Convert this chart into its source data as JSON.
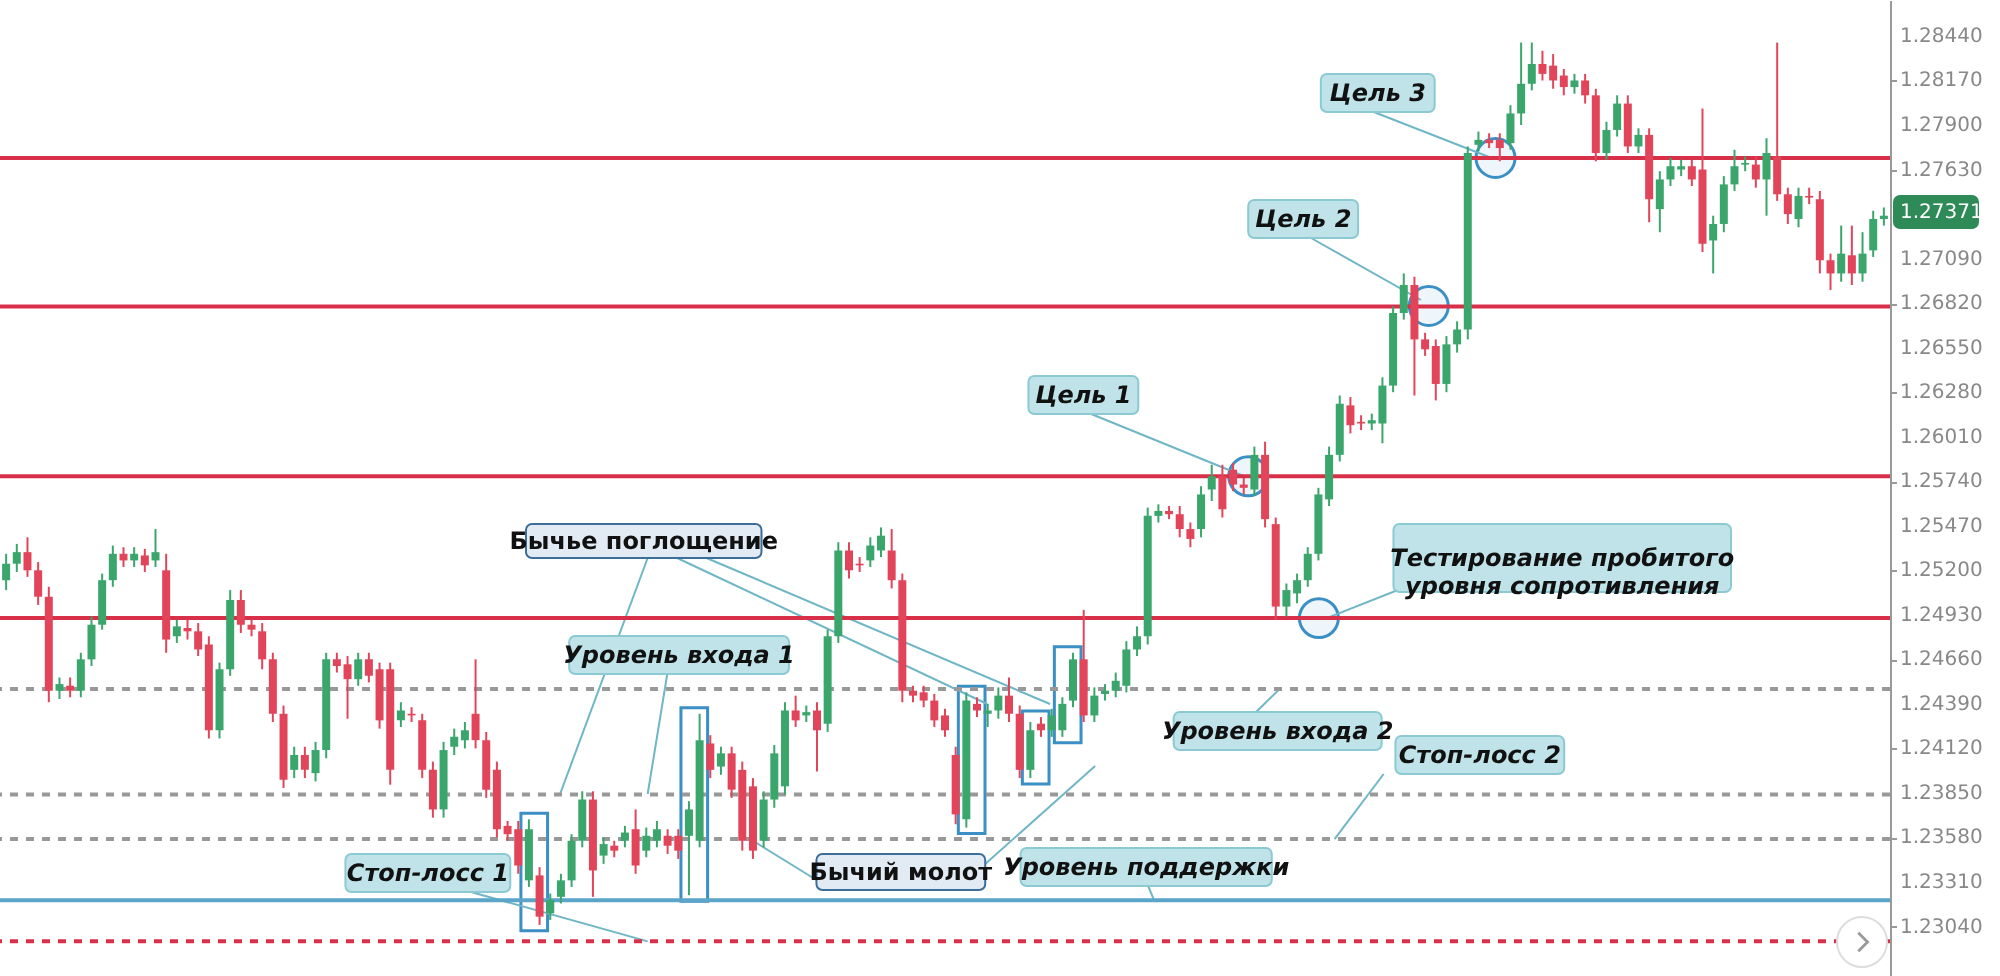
{
  "chart_data": {
    "type": "candlestick",
    "categories": [
      null,
      null,
      null,
      null,
      null,
      null,
      null,
      null,
      null,
      null,
      null,
      null,
      null,
      null,
      null,
      null,
      null,
      null,
      null,
      null,
      null,
      null,
      null,
      null,
      null,
      null,
      null,
      null,
      null,
      null,
      null,
      null,
      null,
      null,
      null,
      null,
      null,
      null,
      null,
      null,
      null,
      null,
      null,
      null,
      null,
      null,
      null,
      null,
      null,
      null,
      null,
      null,
      null,
      null,
      null,
      null,
      null,
      null,
      null,
      null,
      null,
      null,
      null,
      null,
      null,
      null,
      null,
      null,
      null,
      null,
      null,
      null,
      null,
      null,
      null,
      null,
      null,
      null,
      null,
      null,
      null,
      null,
      null,
      null,
      null,
      null,
      null,
      null,
      null,
      null,
      null,
      null,
      null,
      null,
      null,
      null,
      null,
      null,
      null,
      null,
      null,
      null,
      null,
      null,
      null,
      null,
      null,
      null,
      null,
      null,
      null,
      null,
      null,
      null,
      null,
      null,
      null,
      null,
      null,
      null,
      null,
      null,
      null,
      null,
      null,
      null,
      null,
      null,
      null,
      null,
      null,
      null,
      null,
      null,
      null,
      null,
      null,
      null,
      null,
      null,
      null,
      null,
      null,
      null,
      null,
      null,
      null,
      null,
      null,
      null,
      null,
      null,
      null,
      null,
      null,
      null,
      null,
      null,
      null,
      null,
      null,
      null,
      null,
      null,
      null,
      null,
      null,
      null,
      null,
      null,
      null,
      null,
      null,
      null,
      null,
      null,
      null
    ],
    "ohlc": [
      [
        1.2514,
        1.253,
        1.2508,
        1.2524
      ],
      [
        1.2524,
        1.2536,
        1.2519,
        1.2531
      ],
      [
        1.2531,
        1.254,
        1.2516,
        1.252
      ],
      [
        1.252,
        1.2525,
        1.2499,
        1.2504
      ],
      [
        1.2504,
        1.251,
        1.244,
        1.2447
      ],
      [
        1.2447,
        1.2455,
        1.2442,
        1.2451
      ],
      [
        1.245,
        1.2455,
        1.2443,
        1.2447
      ],
      [
        1.2447,
        1.247,
        1.2443,
        1.2466
      ],
      [
        1.2466,
        1.2492,
        1.2462,
        1.2487
      ],
      [
        1.2487,
        1.2518,
        1.2484,
        1.2514
      ],
      [
        1.2514,
        1.2535,
        1.251,
        1.253
      ],
      [
        1.253,
        1.2534,
        1.2522,
        1.2526
      ],
      [
        1.2526,
        1.2534,
        1.2522,
        1.253
      ],
      [
        1.2529,
        1.2533,
        1.2519,
        1.2523
      ],
      [
        1.2526,
        1.2545,
        1.2522,
        1.2531
      ],
      [
        1.252,
        1.253,
        1.247,
        1.2478
      ],
      [
        1.248,
        1.249,
        1.2476,
        1.2486
      ],
      [
        1.2485,
        1.249,
        1.2478,
        1.2483
      ],
      [
        1.2483,
        1.2488,
        1.2468,
        1.2472
      ],
      [
        1.2475,
        1.248,
        1.2418,
        1.2423
      ],
      [
        1.2423,
        1.2464,
        1.2418,
        1.246
      ],
      [
        1.246,
        1.2508,
        1.2456,
        1.2502
      ],
      [
        1.2502,
        1.2508,
        1.2482,
        1.2487
      ],
      [
        1.2487,
        1.249,
        1.248,
        1.2484
      ],
      [
        1.2483,
        1.2488,
        1.246,
        1.2466
      ],
      [
        1.2466,
        1.247,
        1.2428,
        1.2433
      ],
      [
        1.2433,
        1.2438,
        1.2388,
        1.2393
      ],
      [
        1.2399,
        1.2413,
        1.2394,
        1.2408
      ],
      [
        1.2408,
        1.2413,
        1.2394,
        1.2399
      ],
      [
        1.2397,
        1.2416,
        1.2392,
        1.2411
      ],
      [
        1.2411,
        1.247,
        1.2406,
        1.2466
      ],
      [
        1.2466,
        1.247,
        1.2458,
        1.2462
      ],
      [
        1.2463,
        1.2468,
        1.243,
        1.2454
      ],
      [
        1.2454,
        1.247,
        1.245,
        1.2466
      ],
      [
        1.2466,
        1.247,
        1.2452,
        1.2456
      ],
      [
        1.246,
        1.2464,
        1.2424,
        1.2429
      ],
      [
        1.246,
        1.2464,
        1.239,
        1.2399
      ],
      [
        1.2429,
        1.244,
        1.2425,
        1.2435
      ],
      [
        1.2433,
        1.2437,
        1.2428,
        1.2432
      ],
      [
        1.2429,
        1.2433,
        1.2394,
        1.2399
      ],
      [
        1.2399,
        1.2404,
        1.237,
        1.2375
      ],
      [
        1.2375,
        1.2416,
        1.237,
        1.2411
      ],
      [
        1.2413,
        1.2424,
        1.2408,
        1.2419
      ],
      [
        1.2417,
        1.2428,
        1.2412,
        1.2423
      ],
      [
        1.2433,
        1.2466,
        1.2412,
        1.2417
      ],
      [
        1.2417,
        1.2422,
        1.2382,
        1.2387
      ],
      [
        1.2399,
        1.2404,
        1.2358,
        1.2363
      ],
      [
        1.2365,
        1.2368,
        1.2356,
        1.236
      ],
      [
        1.2363,
        1.2368,
        1.2336,
        1.2341
      ],
      [
        1.2332,
        1.2369,
        1.2328,
        1.2363
      ],
      [
        1.2335,
        1.234,
        1.2305,
        1.231
      ],
      [
        1.2312,
        1.2324,
        1.2308,
        1.232
      ],
      [
        1.2322,
        1.2336,
        1.2318,
        1.2332
      ],
      [
        1.2332,
        1.236,
        1.2328,
        1.2356
      ],
      [
        1.2356,
        1.2386,
        1.2352,
        1.2381
      ],
      [
        1.2381,
        1.2386,
        1.2322,
        1.2338
      ],
      [
        1.2347,
        1.2358,
        1.2342,
        1.2354
      ],
      [
        1.2353,
        1.2356,
        1.2346,
        1.235
      ],
      [
        1.2356,
        1.2365,
        1.2352,
        1.2361
      ],
      [
        1.2363,
        1.2375,
        1.2336,
        1.2341
      ],
      [
        1.235,
        1.2364,
        1.2346,
        1.2359
      ],
      [
        1.2356,
        1.2368,
        1.2352,
        1.2363
      ],
      [
        1.2359,
        1.2363,
        1.2348,
        1.2353
      ],
      [
        1.2359,
        1.2363,
        1.2345,
        1.235
      ],
      [
        1.2359,
        1.238,
        1.2323,
        1.2375
      ],
      [
        1.2356,
        1.2433,
        1.2352,
        1.2417
      ],
      [
        1.2415,
        1.242,
        1.2394,
        1.2399
      ],
      [
        1.2401,
        1.2413,
        1.2396,
        1.2409
      ],
      [
        1.2409,
        1.2413,
        1.2382,
        1.2387
      ],
      [
        1.2399,
        1.2404,
        1.235,
        1.2356
      ],
      [
        1.2389,
        1.2394,
        1.2345,
        1.235
      ],
      [
        1.2356,
        1.2386,
        1.2352,
        1.2381
      ],
      [
        1.2381,
        1.2414,
        1.2376,
        1.2409
      ],
      [
        1.2389,
        1.244,
        1.2384,
        1.2435
      ],
      [
        1.2435,
        1.2444,
        1.2425,
        1.2429
      ],
      [
        1.2432,
        1.2438,
        1.2428,
        1.2434
      ],
      [
        1.2435,
        1.244,
        1.2398,
        1.2423
      ],
      [
        1.2427,
        1.2484,
        1.2422,
        1.248
      ],
      [
        1.248,
        1.2537,
        1.2476,
        1.2532
      ],
      [
        1.2532,
        1.2537,
        1.2515,
        1.252
      ],
      [
        1.2524,
        1.2528,
        1.2519,
        1.2523
      ],
      [
        1.2526,
        1.254,
        1.2522,
        1.2535
      ],
      [
        1.2532,
        1.2546,
        1.2528,
        1.2541
      ],
      [
        1.2532,
        1.2545,
        1.2509,
        1.2514
      ],
      [
        1.2514,
        1.2518,
        1.244,
        1.2447
      ],
      [
        1.2447,
        1.245,
        1.244,
        1.2444
      ],
      [
        1.2446,
        1.245,
        1.2437,
        1.2441
      ],
      [
        1.2441,
        1.2445,
        1.2425,
        1.2429
      ],
      [
        1.2432,
        1.2436,
        1.2419,
        1.2423
      ],
      [
        1.2408,
        1.2413,
        1.2366,
        1.2372
      ],
      [
        1.2369,
        1.2446,
        1.2364,
        1.2441
      ],
      [
        1.2439,
        1.2443,
        1.2431,
        1.2435
      ],
      [
        1.2433,
        1.2439,
        1.2425,
        1.2435
      ],
      [
        1.2435,
        1.2449,
        1.243,
        1.2444
      ],
      [
        1.2444,
        1.2455,
        1.2428,
        1.2433
      ],
      [
        1.2433,
        1.2438,
        1.2394,
        1.2399
      ],
      [
        1.2399,
        1.2428,
        1.2394,
        1.2423
      ],
      [
        1.2427,
        1.2431,
        1.2419,
        1.2423
      ],
      [
        1.2423,
        1.2436,
        1.2419,
        1.2432
      ],
      [
        1.2423,
        1.2443,
        1.2419,
        1.2439
      ],
      [
        1.2441,
        1.247,
        1.2437,
        1.2466
      ],
      [
        1.2466,
        1.2496,
        1.2428,
        1.2432
      ],
      [
        1.2432,
        1.2449,
        1.2428,
        1.2444
      ],
      [
        1.2445,
        1.2451,
        1.2441,
        1.2447
      ],
      [
        1.2447,
        1.2458,
        1.2443,
        1.2453
      ],
      [
        1.245,
        1.2477,
        1.2446,
        1.2472
      ],
      [
        1.2472,
        1.2486,
        1.2468,
        1.248
      ],
      [
        1.248,
        1.2558,
        1.2475,
        1.2553
      ],
      [
        1.2553,
        1.256,
        1.2549,
        1.2556
      ],
      [
        1.2556,
        1.2559,
        1.2551,
        1.2554
      ],
      [
        1.2554,
        1.2559,
        1.254,
        1.2545
      ],
      [
        1.2545,
        1.2549,
        1.2534,
        1.2539
      ],
      [
        1.2545,
        1.2571,
        1.254,
        1.2566
      ],
      [
        1.2569,
        1.2584,
        1.2562,
        1.2577
      ],
      [
        1.2577,
        1.2584,
        1.2552,
        1.2557
      ],
      [
        1.2581,
        1.2585,
        1.2568,
        1.2572
      ],
      [
        1.2572,
        1.2576,
        1.2566,
        1.257
      ],
      [
        1.2569,
        1.2595,
        1.2565,
        1.259
      ],
      [
        1.259,
        1.2598,
        1.2546,
        1.2551
      ],
      [
        1.2548,
        1.2552,
        1.249,
        1.2498
      ],
      [
        1.2498,
        1.2512,
        1.2492,
        1.2508
      ],
      [
        1.2506,
        1.2518,
        1.25,
        1.2514
      ],
      [
        1.2514,
        1.2534,
        1.251,
        1.253
      ],
      [
        1.253,
        1.257,
        1.2526,
        1.2566
      ],
      [
        1.2563,
        1.2595,
        1.2559,
        1.259
      ],
      [
        1.259,
        1.2626,
        1.2586,
        1.2621
      ],
      [
        1.262,
        1.2625,
        1.2603,
        1.2608
      ],
      [
        1.261,
        1.2614,
        1.2605,
        1.2609
      ],
      [
        1.2609,
        1.2615,
        1.2605,
        1.2611
      ],
      [
        1.2609,
        1.2637,
        1.2597,
        1.2632
      ],
      [
        1.2632,
        1.268,
        1.2628,
        1.2676
      ],
      [
        1.2676,
        1.27,
        1.2672,
        1.2693
      ],
      [
        1.2693,
        1.2698,
        1.2626,
        1.266
      ],
      [
        1.266,
        1.2664,
        1.265,
        1.2654
      ],
      [
        1.2656,
        1.266,
        1.2623,
        1.2633
      ],
      [
        1.2633,
        1.2662,
        1.2628,
        1.2657
      ],
      [
        1.2657,
        1.2671,
        1.2652,
        1.2666
      ],
      [
        1.2666,
        1.2777,
        1.266,
        1.2773
      ],
      [
        1.2778,
        1.2786,
        1.2774,
        1.2781
      ],
      [
        1.2781,
        1.2785,
        1.2776,
        1.2779
      ],
      [
        1.2781,
        1.2785,
        1.2768,
        1.2776
      ],
      [
        1.2779,
        1.2802,
        1.2775,
        1.2797
      ],
      [
        1.2797,
        1.284,
        1.279,
        1.2815
      ],
      [
        1.2815,
        1.284,
        1.2811,
        1.2827
      ],
      [
        1.2827,
        1.2835,
        1.2817,
        1.2821
      ],
      [
        1.2826,
        1.2833,
        1.2812,
        1.2817
      ],
      [
        1.282,
        1.2824,
        1.2808,
        1.2813
      ],
      [
        1.2813,
        1.2821,
        1.2809,
        1.2817
      ],
      [
        1.2817,
        1.2821,
        1.2803,
        1.2808
      ],
      [
        1.2808,
        1.2812,
        1.2768,
        1.2773
      ],
      [
        1.2773,
        1.2792,
        1.2769,
        1.2787
      ],
      [
        1.2787,
        1.2808,
        1.2783,
        1.2803
      ],
      [
        1.2803,
        1.2808,
        1.2773,
        1.2777
      ],
      [
        1.2777,
        1.2788,
        1.2773,
        1.2784
      ],
      [
        1.2784,
        1.2788,
        1.2731,
        1.2745
      ],
      [
        1.2739,
        1.2762,
        1.2725,
        1.2757
      ],
      [
        1.2757,
        1.277,
        1.2753,
        1.2765
      ],
      [
        1.2763,
        1.2769,
        1.2759,
        1.2765
      ],
      [
        1.2765,
        1.2769,
        1.2753,
        1.2757
      ],
      [
        1.2763,
        1.28,
        1.2713,
        1.2718
      ],
      [
        1.272,
        1.2735,
        1.27,
        1.273
      ],
      [
        1.273,
        1.2759,
        1.2725,
        1.2754
      ],
      [
        1.2754,
        1.2775,
        1.275,
        1.2765
      ],
      [
        1.2766,
        1.2771,
        1.2762,
        1.2767
      ],
      [
        1.2766,
        1.2771,
        1.2752,
        1.2757
      ],
      [
        1.2757,
        1.2782,
        1.2735,
        1.2773
      ],
      [
        1.2771,
        1.284,
        1.2744,
        1.2748
      ],
      [
        1.2748,
        1.2752,
        1.273,
        1.2736
      ],
      [
        1.2733,
        1.2752,
        1.2728,
        1.2747
      ],
      [
        1.2747,
        1.2752,
        1.2742,
        1.2746
      ],
      [
        1.2745,
        1.275,
        1.27,
        1.2708
      ],
      [
        1.2708,
        1.2712,
        1.269,
        1.27
      ],
      [
        1.27,
        1.2729,
        1.2695,
        1.2712
      ],
      [
        1.2711,
        1.2729,
        1.2693,
        1.27
      ],
      [
        1.27,
        1.2725,
        1.2695,
        1.2712
      ],
      [
        1.2714,
        1.2738,
        1.271,
        1.2733
      ],
      [
        1.2733,
        1.274,
        1.2729,
        1.2735
      ]
    ],
    "ylim": [
      1.2274,
      1.28658
    ],
    "yticks": [
      {
        "value": 1.2304,
        "label": "1.23040"
      },
      {
        "value": 1.2331,
        "label": "1.23310"
      },
      {
        "value": 1.2358,
        "label": "1.23580"
      },
      {
        "value": 1.2385,
        "label": "1.23850"
      },
      {
        "value": 1.2412,
        "label": "1.24120"
      },
      {
        "value": 1.2439,
        "label": "1.24390"
      },
      {
        "value": 1.2466,
        "label": "1.24660"
      },
      {
        "value": 1.2493,
        "label": "1.24930"
      },
      {
        "value": 1.252,
        "label": "1.25200"
      },
      {
        "value": 1.2547,
        "label": "1.25470"
      },
      {
        "value": 1.2574,
        "label": "1.25740"
      },
      {
        "value": 1.2601,
        "label": "1.26010"
      },
      {
        "value": 1.2628,
        "label": "1.26280"
      },
      {
        "value": 1.2655,
        "label": "1.26550"
      },
      {
        "value": 1.2682,
        "label": "1.26820"
      },
      {
        "value": 1.2709,
        "label": "1.27090"
      },
      {
        "value": 1.2763,
        "label": "1.27630"
      },
      {
        "value": 1.279,
        "label": "1.27900"
      },
      {
        "value": 1.2817,
        "label": "1.28170"
      },
      {
        "value": 1.2844,
        "label": "1.28440"
      }
    ],
    "tick_labels": "y",
    "ref_lines": [
      {
        "axis": "y",
        "value": 1.277,
        "color": "#d9304a",
        "line_style": "solid"
      },
      {
        "axis": "y",
        "value": 1.268,
        "color": "#d9304a",
        "line_style": "solid"
      },
      {
        "axis": "y",
        "value": 1.2577,
        "color": "#d9304a",
        "line_style": "solid"
      },
      {
        "axis": "y",
        "value": 1.2491,
        "color": "#d9304a",
        "line_style": "solid"
      },
      {
        "axis": "y",
        "value": 1.2448,
        "color": "#999999",
        "line_style": "dashed"
      },
      {
        "axis": "y",
        "value": 1.2384,
        "color": "#999999",
        "line_style": "dashed"
      },
      {
        "axis": "y",
        "value": 1.2357,
        "color": "#999999",
        "line_style": "dashed"
      },
      {
        "axis": "y",
        "value": 1.232,
        "color": "#5aa5c8",
        "line_style": "solid"
      },
      {
        "axis": "y",
        "value": 1.2295,
        "color": "#d9304a",
        "line_style": "dashed"
      }
    ],
    "annotations": [
      {
        "text": "Цель 3",
        "y": 1.277
      },
      "Цель 2",
      {
        "text": "Цель 1",
        "y": 1.2577
      },
      {
        "text": "Тестирование пробитого\nуровня сопротивления",
        "y": 1.2491
      },
      "Бычье поглощение",
      "Уровень входа 1",
      {
        "text": "Уровень входа 2",
        "y": 1.2448
      },
      {
        "text": "Стоп-лосс 2",
        "y": 1.2357
      },
      {
        "text": "Стоп-лосс 1",
        "y": 1.2295
      },
      "Бычий молот",
      {
        "text": "Уровень поддержки",
        "y": 1.232
      },
      "1.27371"
    ]
  }
}
